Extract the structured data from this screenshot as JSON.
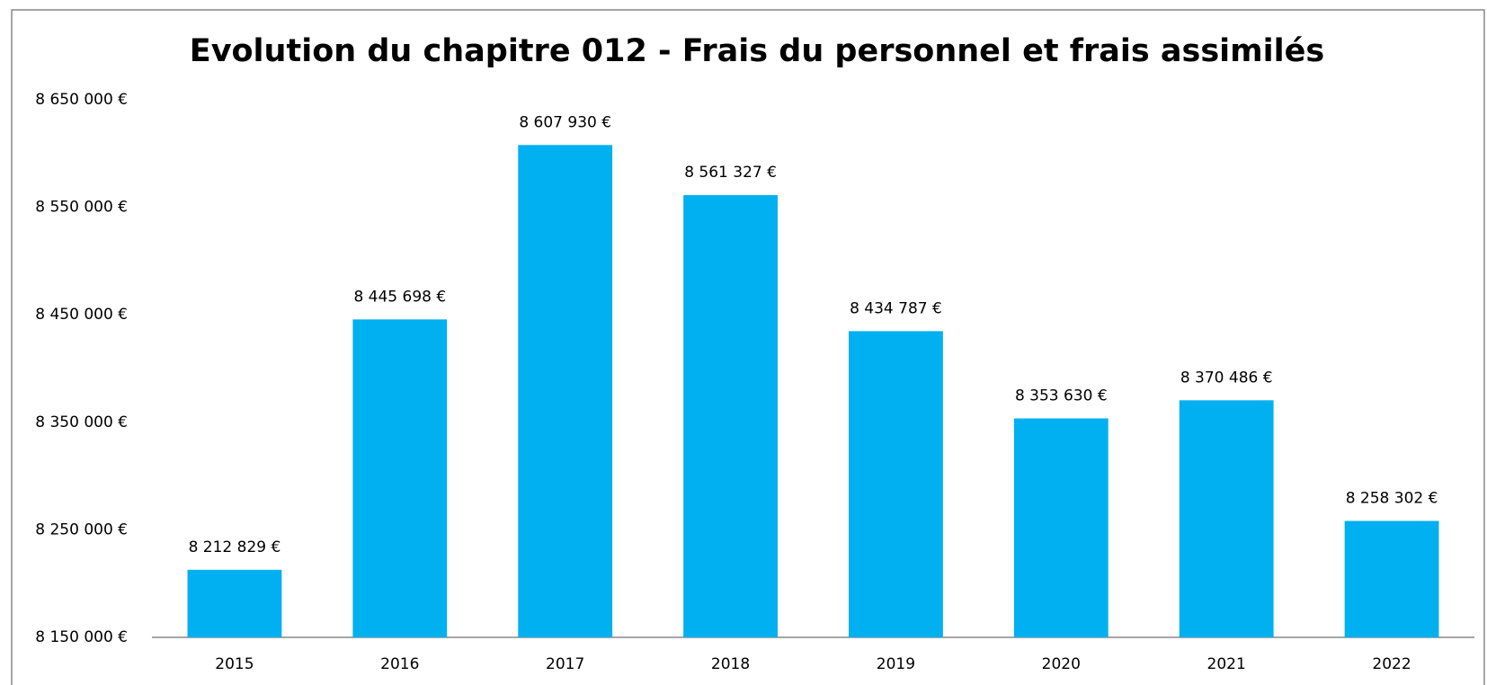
{
  "chart_data": {
    "type": "bar",
    "title": "Evolution du chapitre 012 - Frais du personnel et frais assimilés",
    "categories": [
      "2015",
      "2016",
      "2017",
      "2018",
      "2019",
      "2020",
      "2021",
      "2022"
    ],
    "values": [
      8212829,
      8445698,
      8607930,
      8561327,
      8434787,
      8353630,
      8370486,
      8258302
    ],
    "value_labels": [
      "8 212 829 €",
      "8 445 698 €",
      "8 607 930 €",
      "8 561 327 €",
      "8 434 787 €",
      "8 353 630 €",
      "8 370 486 €",
      "8 258 302 €"
    ],
    "color": "#00b0f0",
    "ylim": [
      8150000,
      8650000
    ],
    "yticks": [
      {
        "value": 8150000,
        "label": "8 150 000 €"
      },
      {
        "value": 8250000,
        "label": "8 250 000 €"
      },
      {
        "value": 8350000,
        "label": "8 350 000 €"
      },
      {
        "value": 8450000,
        "label": "8 450 000 €"
      },
      {
        "value": 8550000,
        "label": "8 550 000 €"
      },
      {
        "value": 8650000,
        "label": "8 650 000 €"
      }
    ],
    "grid": false
  }
}
